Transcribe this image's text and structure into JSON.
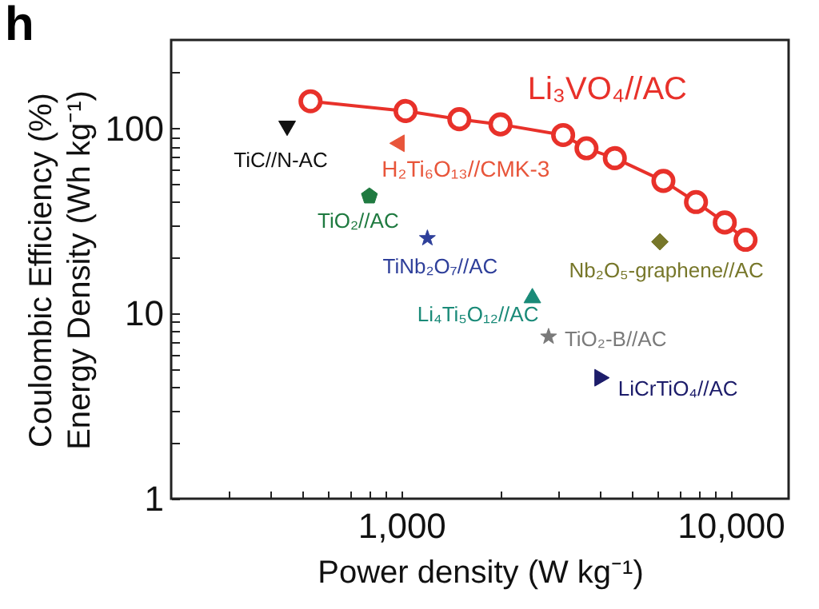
{
  "chart_data": {
    "type": "scatter",
    "title": "h",
    "xlabel": "Power density (W kg⁻¹)",
    "ylabel": "Coulombic Efficiency (%)\nEnergy Density (Wh kg⁻¹)",
    "log": "xy",
    "grid": false,
    "xlim": [
      200,
      15000
    ],
    "ylim": [
      1,
      300
    ],
    "xticks": [
      {
        "value": 300,
        "label": null
      },
      {
        "value": 400,
        "label": null
      },
      {
        "value": 500,
        "label": null
      },
      {
        "value": 600,
        "label": null
      },
      {
        "value": 700,
        "label": null
      },
      {
        "value": 800,
        "label": null
      },
      {
        "value": 900,
        "label": null
      },
      {
        "value": 1000,
        "label": "1,000"
      },
      {
        "value": 2000,
        "label": null
      },
      {
        "value": 3000,
        "label": null
      },
      {
        "value": 4000,
        "label": null
      },
      {
        "value": 5000,
        "label": null
      },
      {
        "value": 6000,
        "label": null
      },
      {
        "value": 7000,
        "label": null
      },
      {
        "value": 8000,
        "label": null
      },
      {
        "value": 9000,
        "label": null
      },
      {
        "value": 10000,
        "label": "10,000"
      }
    ],
    "yticks": [
      1,
      {
        "value": 2,
        "label": null
      },
      {
        "value": 3,
        "label": null
      },
      {
        "value": 4,
        "label": null
      },
      {
        "value": 5,
        "label": null
      },
      {
        "value": 6,
        "label": null
      },
      {
        "value": 7,
        "label": null
      },
      {
        "value": 8,
        "label": null
      },
      {
        "value": 9,
        "label": null
      },
      10,
      {
        "value": 20,
        "label": null
      },
      {
        "value": 30,
        "label": null
      },
      {
        "value": 40,
        "label": null
      },
      {
        "value": 50,
        "label": null
      },
      {
        "value": 60,
        "label": null
      },
      {
        "value": 70,
        "label": null
      },
      {
        "value": 80,
        "label": null
      },
      {
        "value": 90,
        "label": null
      },
      100,
      {
        "value": 200,
        "label": null
      }
    ],
    "series": [
      {
        "name": "Li₃VO₄//AC",
        "type": "line",
        "marker": "circle",
        "color": "#e8312a",
        "x": [
          530,
          1030,
          1500,
          2000,
          3100,
          3650,
          4450,
          6250,
          7850,
          9600,
          11100
        ],
        "values": [
          140,
          124,
          112,
          105,
          92,
          78,
          69,
          52,
          40,
          31,
          25
        ]
      },
      {
        "name": "TiC//N-AC",
        "marker": "triangle-down",
        "color": "#111111",
        "x": [
          450
        ],
        "values": [
          100
        ]
      },
      {
        "name": "H₂Ti₆O₁₃//CMK-3",
        "marker": "triangle-left",
        "color": "#e8553a",
        "x": [
          970
        ],
        "values": [
          83
        ]
      },
      {
        "name": "TiO₂//AC",
        "color": "#1f7a40",
        "x": [
          800
        ],
        "values": [
          43
        ]
      },
      {
        "name": "TiNb₂O₇//AC",
        "marker": "star",
        "color": "#2e3f9a",
        "x": [
          1200
        ],
        "values": [
          25.5
        ]
      },
      {
        "name": "Nb₂O₅-graphene//AC",
        "marker": "diamond",
        "color": "#77772a",
        "x": [
          6100
        ],
        "values": [
          24.4
        ]
      },
      {
        "name": "Li₄Ti₅O₁₂//AC",
        "marker": "triangle",
        "color": "#1a8a78",
        "x": [
          2500
        ],
        "values": [
          12.5
        ]
      },
      {
        "name": "TiO₂-B//AC",
        "marker": "star",
        "color": "#7a7a7a",
        "x": [
          2800
        ],
        "values": [
          7.5
        ]
      },
      {
        "name": "LiCrTiO₄//AC",
        "marker": "triangle-right",
        "color": "#1c1c6a",
        "x": [
          4070
        ],
        "values": [
          4.5
        ]
      }
    ]
  }
}
